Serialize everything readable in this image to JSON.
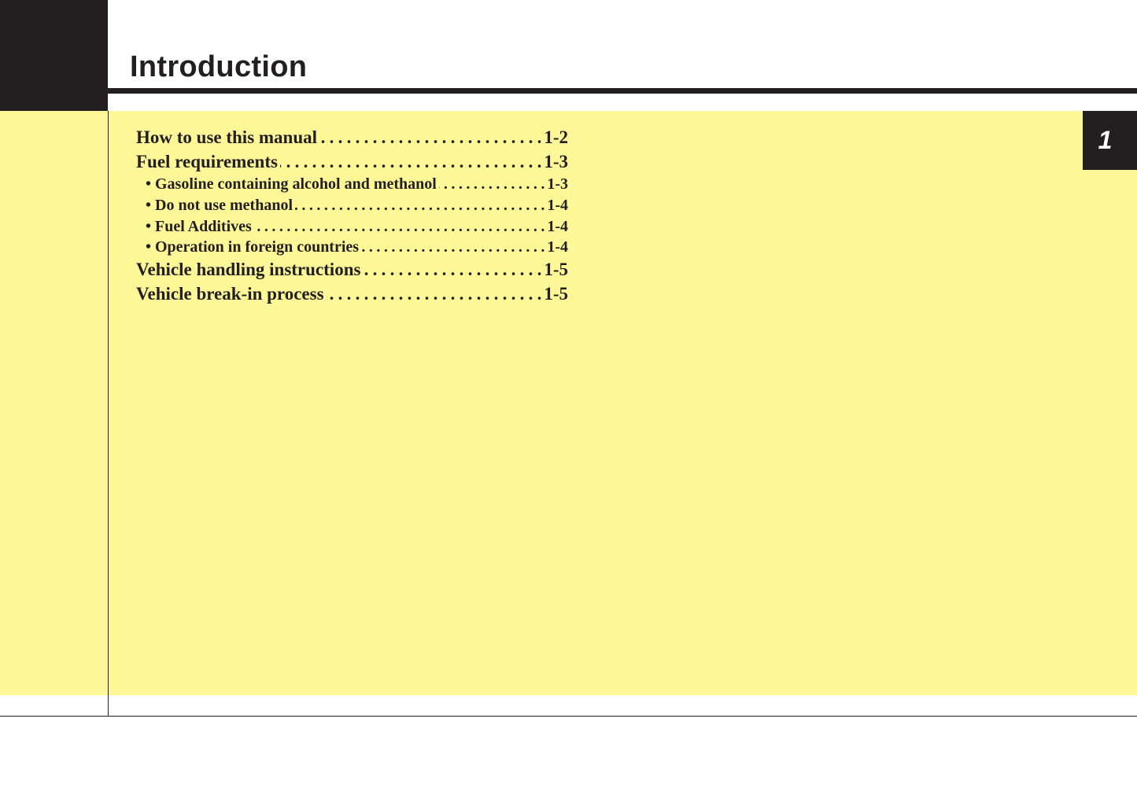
{
  "header": {
    "title": "Introduction"
  },
  "chapter_tab": {
    "label": "1"
  },
  "toc": [
    {
      "label": "How to use this manual",
      "page": "1-2",
      "level": "main"
    },
    {
      "label": "Fuel requirements",
      "page": "1-3",
      "level": "main"
    },
    {
      "label": "• Gasoline containing alcohol and methanol",
      "page": "1-3",
      "level": "sub"
    },
    {
      "label": "• Do not use methanol",
      "page": "1-4",
      "level": "sub"
    },
    {
      "label": "• Fuel Additives",
      "page": "1-4",
      "level": "sub"
    },
    {
      "label": "• Operation in foreign countries",
      "page": "1-4",
      "level": "sub"
    },
    {
      "label": "Vehicle handling instructions",
      "page": "1-5",
      "level": "main"
    },
    {
      "label": "Vehicle break-in process",
      "page": "1-5",
      "level": "main"
    }
  ]
}
